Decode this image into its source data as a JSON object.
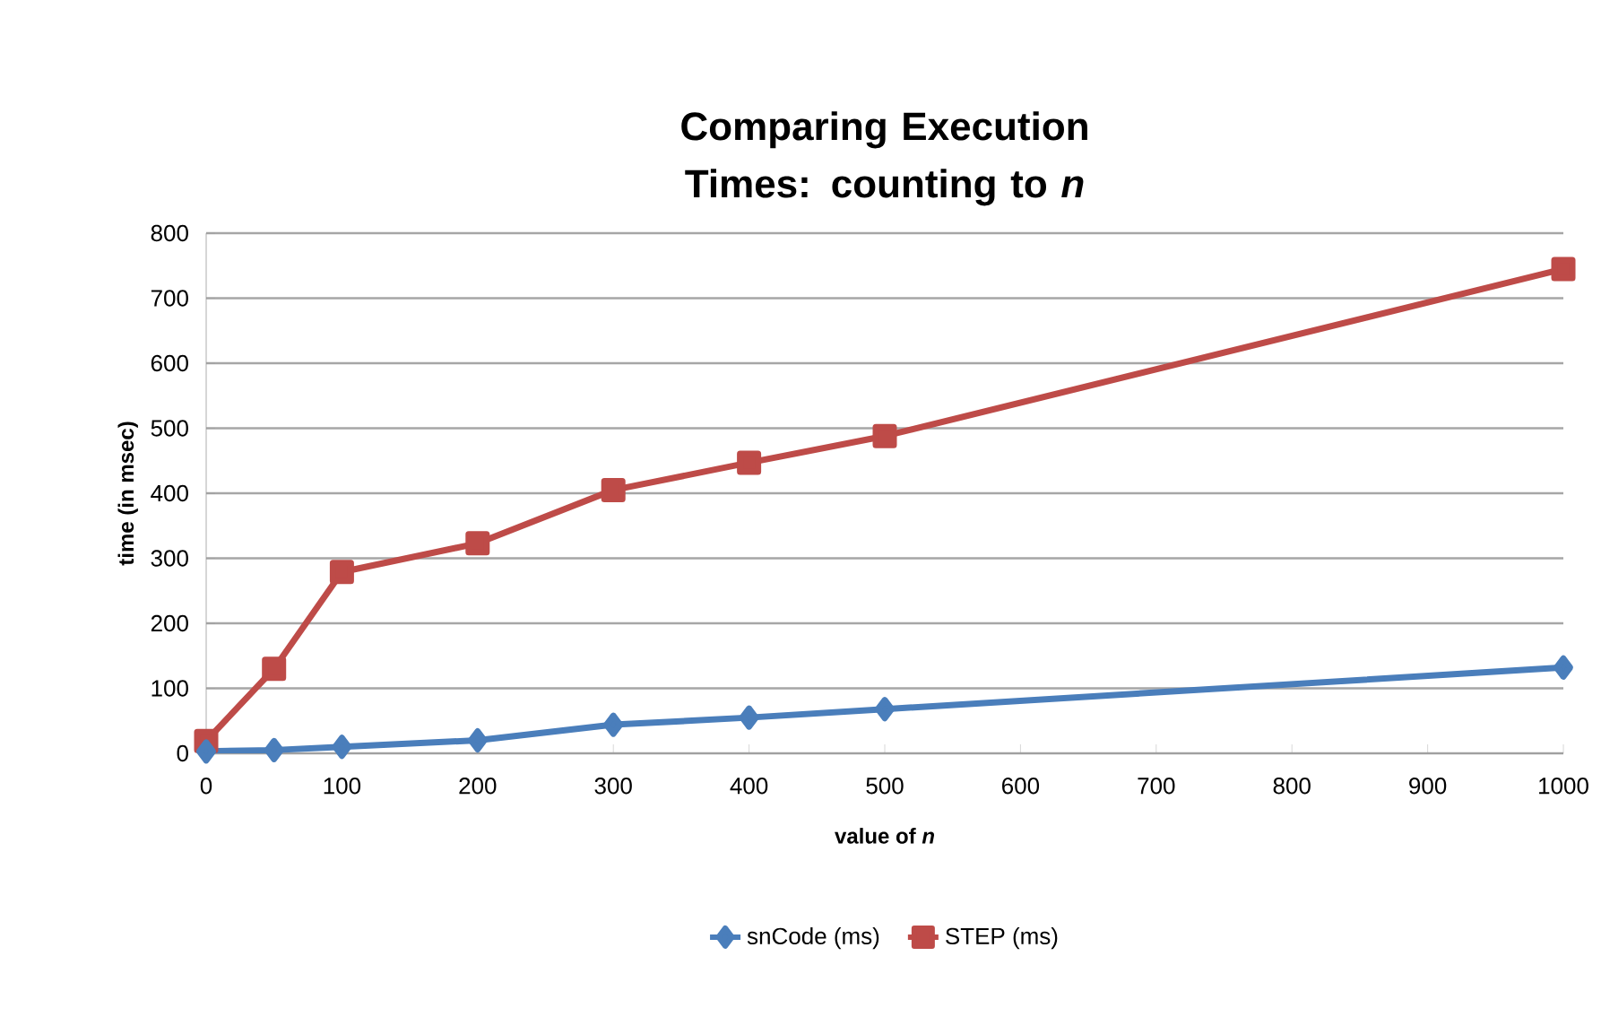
{
  "chart_data": {
    "type": "line",
    "title": "Comparing Execution Times: counting to *n*",
    "xlabel": "value of *n*",
    "ylabel": "time (in msec)",
    "x": [
      0,
      50,
      100,
      200,
      300,
      400,
      500,
      1000
    ],
    "series": [
      {
        "name": "snCode (ms)",
        "color": "#4a7ebb",
        "marker": "diamond",
        "values": [
          3,
          5,
          10,
          20,
          44,
          55,
          68,
          132
        ]
      },
      {
        "name": "STEP (ms)",
        "color": "#be4b48",
        "marker": "square",
        "values": [
          19,
          130,
          279,
          323,
          405,
          447,
          488,
          745
        ]
      }
    ],
    "xlim": [
      0,
      1000
    ],
    "xticks": [
      0,
      100,
      200,
      300,
      400,
      500,
      600,
      700,
      800,
      900,
      1000
    ],
    "ylim": [
      0,
      800
    ],
    "yticks": [
      0,
      100,
      200,
      300,
      400,
      500,
      600,
      700,
      800
    ],
    "grid": "y",
    "legend": "bottom",
    "line_style": "solid"
  }
}
